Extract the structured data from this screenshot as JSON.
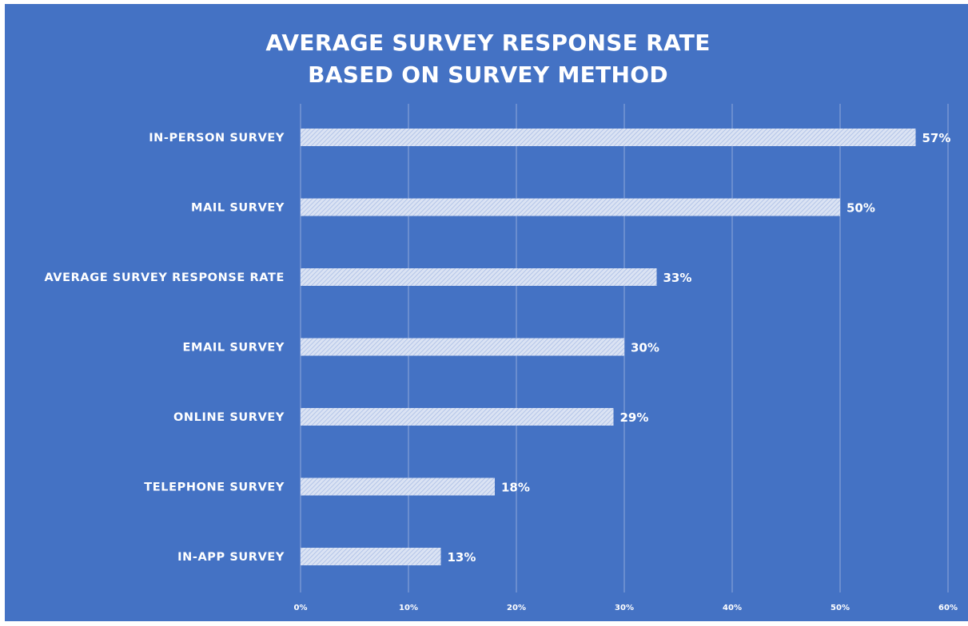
{
  "chart_data": {
    "type": "bar",
    "orientation": "horizontal",
    "title_lines": [
      "AVERAGE SURVEY RESPONSE RATE",
      "BASED ON SURVEY METHOD"
    ],
    "categories": [
      "IN-PERSON SURVEY",
      "MAIL SURVEY",
      "AVERAGE SURVEY RESPONSE RATE",
      "EMAIL SURVEY",
      "ONLINE SURVEY",
      "TELEPHONE SURVEY",
      "IN-APP SURVEY"
    ],
    "values": [
      57,
      50,
      33,
      30,
      29,
      18,
      13
    ],
    "value_labels": [
      "57%",
      "50%",
      "33%",
      "30%",
      "29%",
      "18%",
      "13%"
    ],
    "xlim": [
      0,
      60
    ],
    "x_ticks": [
      0,
      10,
      20,
      30,
      40,
      50,
      60
    ],
    "x_tick_labels": [
      "0%",
      "10%",
      "20%",
      "30%",
      "40%",
      "50%",
      "60%"
    ],
    "grid": "vertical",
    "legend": "none",
    "colors": {
      "background": "#4472c4",
      "bar_fill": "#dbe3f3",
      "bar_hatch": "#a9bde6",
      "grid": "#8fa8da",
      "text": "#ffffff"
    }
  }
}
